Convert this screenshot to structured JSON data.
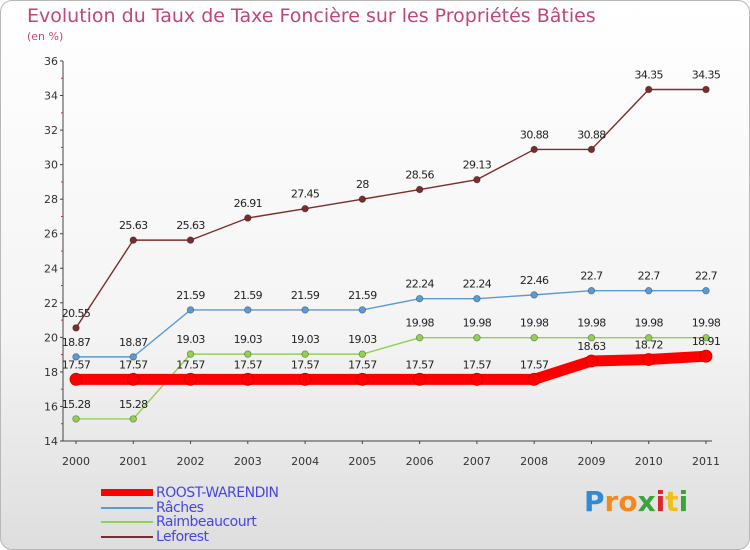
{
  "title": "Evolution du Taux de Taxe Foncière sur les Propriétés Bâties",
  "unit_label": "(en %)",
  "logo_text": "Proxiti",
  "chart_data": {
    "type": "line",
    "title": "Evolution du Taux de Taxe Foncière sur les Propriétés Bâties",
    "ylabel": "(en %)",
    "xlabel": "",
    "x": [
      "2000",
      "2001",
      "2002",
      "2003",
      "2004",
      "2005",
      "2006",
      "2007",
      "2008",
      "2009",
      "2010",
      "2011"
    ],
    "ylim": [
      14,
      36
    ],
    "yticks": [
      14,
      16,
      18,
      20,
      22,
      24,
      26,
      28,
      30,
      32,
      34,
      36
    ],
    "grid": false,
    "legend_position": "bottom-left",
    "series": [
      {
        "name": "ROOST-WARENDIN",
        "color": "#ff0000",
        "emphasis": true,
        "values": [
          17.57,
          17.57,
          17.57,
          17.57,
          17.57,
          17.57,
          17.57,
          17.57,
          17.57,
          18.63,
          18.72,
          18.91
        ],
        "labels": [
          "17.57",
          "17.57",
          "17.57",
          "17.57",
          "17.57",
          "17.57",
          "17.57",
          "17.57",
          "17.57",
          "18.63",
          "18.72",
          "18.91"
        ]
      },
      {
        "name": "Râches",
        "color": "#5b9bd5",
        "values": [
          18.87,
          18.87,
          21.59,
          21.59,
          21.59,
          21.59,
          22.24,
          22.24,
          22.46,
          22.7,
          22.7,
          22.7
        ],
        "labels": [
          "18.87",
          "18.87",
          "21.59",
          "21.59",
          "21.59",
          "21.59",
          "22.24",
          "22.24",
          "22.46",
          "22.7",
          "22.7",
          "22.7"
        ]
      },
      {
        "name": "Raimbeaucourt",
        "color": "#92d050",
        "values": [
          15.28,
          15.28,
          19.03,
          19.03,
          19.03,
          19.03,
          19.98,
          19.98,
          19.98,
          19.98,
          19.98,
          19.98
        ],
        "labels": [
          "15.28",
          "15.28",
          "19.03",
          "19.03",
          "19.03",
          "19.03",
          "19.98",
          "19.98",
          "19.98",
          "19.98",
          "19.98",
          "19.98"
        ]
      },
      {
        "name": "Leforest",
        "color": "#7b2c2c",
        "values": [
          20.55,
          25.63,
          25.63,
          26.91,
          27.45,
          28,
          28.56,
          29.13,
          30.88,
          30.88,
          34.35,
          34.35
        ],
        "labels": [
          "20.55",
          "25.63",
          "25.63",
          "26.91",
          "27.45",
          "28",
          "28.56",
          "29.13",
          "30.88",
          "30.88",
          "34.35",
          "34.35"
        ]
      }
    ]
  }
}
